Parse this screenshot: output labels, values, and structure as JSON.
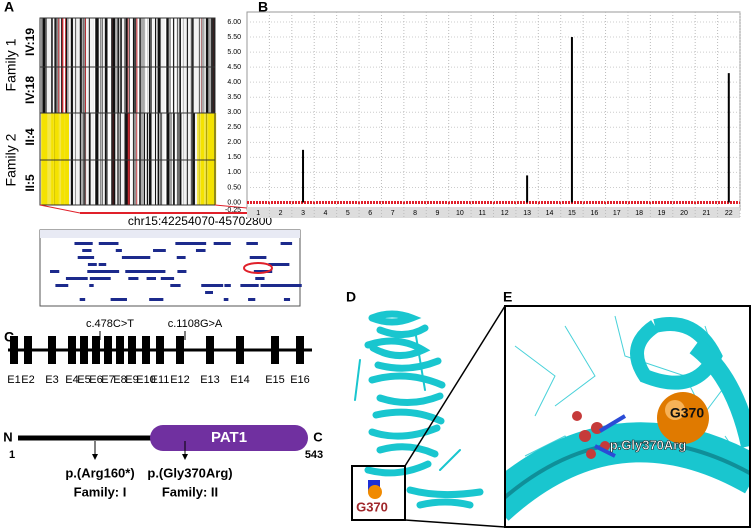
{
  "panel_a": {
    "letter": "A",
    "family1": "Family 1",
    "family2": "Family 2",
    "rows": [
      "IV:19",
      "IV:18",
      "II:4",
      "II:5"
    ],
    "region": "chr15:42254070-45702800"
  },
  "chart_data": {
    "type": "bar",
    "letter": "B",
    "categories": [
      "1",
      "2",
      "3",
      "4",
      "5",
      "6",
      "7",
      "8",
      "9",
      "10",
      "11",
      "12",
      "13",
      "14",
      "15",
      "16",
      "17",
      "18",
      "19",
      "20",
      "21",
      "22"
    ],
    "values": [
      0,
      0,
      1.75,
      0,
      0,
      0,
      0,
      0,
      0,
      0,
      0,
      0,
      0.9,
      0,
      5.5,
      0,
      0,
      0,
      0,
      0,
      0,
      4.3
    ],
    "color": "#000000",
    "baseline_color": "#e0202a",
    "ylim": [
      -0.25,
      6.0
    ],
    "yticks": [
      {
        "value": -0.25,
        "label": "-0.25"
      },
      {
        "value": 0,
        "label": "0.00"
      },
      {
        "value": 0.5,
        "label": "0.50"
      },
      {
        "value": 1,
        "label": "1.00"
      },
      {
        "value": 1.5,
        "label": "1.50"
      },
      {
        "value": 2,
        "label": "2.00"
      },
      {
        "value": 2.5,
        "label": "2.50"
      },
      {
        "value": 3,
        "label": "3.00"
      },
      {
        "value": 3.5,
        "label": "3.50"
      },
      {
        "value": 4,
        "label": "4.00"
      },
      {
        "value": 4.5,
        "label": "4.50"
      },
      {
        "value": 5,
        "label": "5.00"
      },
      {
        "value": 5.5,
        "label": "5.50"
      },
      {
        "value": 6,
        "label": "6.00"
      }
    ],
    "grid": true
  },
  "panel_c": {
    "letter": "C",
    "exons": [
      "E1",
      "E2",
      "E3",
      "E4",
      "E5",
      "E6",
      "E7",
      "E8",
      "E9",
      "E10",
      "E11",
      "E12",
      "E13",
      "E14",
      "E15",
      "E16"
    ],
    "variants": [
      "c.478C>T",
      "c.1108G>A"
    ],
    "n_term": "N",
    "start": "1",
    "c_term": "C",
    "end": "543",
    "domain": "PAT1",
    "protein_variants": [
      {
        "name": "p.(Arg160*)",
        "family": "Family: I"
      },
      {
        "name": "p.(Gly370Arg)",
        "family": "Family: II"
      }
    ]
  },
  "panel_d": {
    "letter": "D",
    "label": "G370"
  },
  "panel_e": {
    "letter": "E",
    "label": "G370",
    "mutation": "p.Gly370Arg"
  }
}
